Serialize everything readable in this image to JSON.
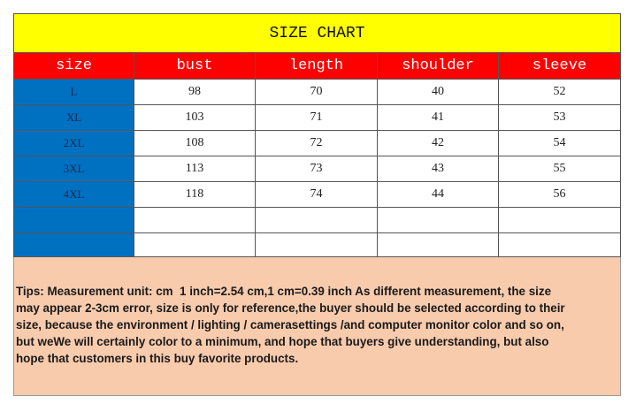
{
  "title": "SIZE CHART",
  "table": {
    "header": [
      "size",
      "bust",
      "length",
      "shoulder",
      "sleeve"
    ],
    "rows": [
      [
        "L",
        "98",
        "70",
        "40",
        "52"
      ],
      [
        "XL",
        "103",
        "71",
        "41",
        "53"
      ],
      [
        "2XL",
        "108",
        "72",
        "42",
        "54"
      ],
      [
        "3XL",
        "113",
        "73",
        "43",
        "55"
      ],
      [
        "4XL",
        "118",
        "74",
        "44",
        "56"
      ]
    ]
  },
  "tips": [
    "Tips: Measurement unit: cm  1 inch=2.54 cm,1 cm=0.39 inch As different measurement, the size",
    "may appear 2-3cm error, size is only for reference,the buyer should be selected according to their",
    "size, because the environment / lighting / camerasettings /and computer monitor color and so on,",
    "but weWe will certainly color to a minimum, and hope that buyers give understanding, but also",
    "hope that customers in this buy favorite products."
  ]
}
